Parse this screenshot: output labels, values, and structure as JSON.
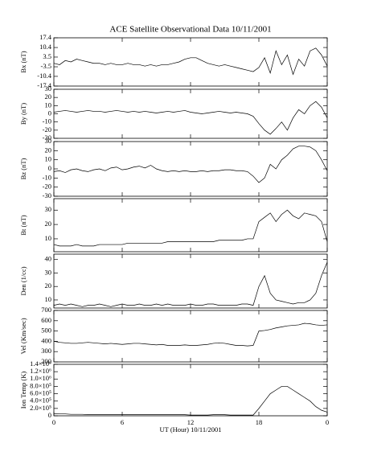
{
  "chart_data": [
    {
      "type": "line",
      "title": "ACE Satellite Observational Data  10/11/2001",
      "ylabel": "Bx (nT)",
      "color": "#000000",
      "xlim": [
        0,
        24
      ],
      "xticks": [
        0,
        6,
        12,
        18,
        {
          "value": 24,
          "label": "0"
        }
      ],
      "ylim": [
        -17.4,
        17.4
      ],
      "yticks": [
        -17.4,
        -10.4,
        -3.5,
        3.5,
        10.4,
        17.4
      ],
      "x": [
        0,
        0.5,
        1,
        1.5,
        2,
        2.5,
        3,
        3.5,
        4,
        4.5,
        5,
        5.5,
        6,
        6.5,
        7,
        7.5,
        8,
        8.5,
        9,
        9.5,
        10,
        10.5,
        11,
        11.5,
        12,
        12.5,
        13,
        13.5,
        14,
        14.5,
        15,
        15.5,
        16,
        16.5,
        17,
        17.5,
        18,
        18.5,
        19,
        19.5,
        20,
        20.5,
        21,
        21.5,
        22,
        22.5,
        23,
        23.5,
        24
      ],
      "values": [
        -1,
        -2,
        1,
        0,
        2,
        1,
        0,
        -1,
        -1,
        -2,
        -1,
        -2,
        -2,
        -1,
        -2,
        -2,
        -3,
        -2,
        -3,
        -2,
        -2,
        -1,
        0,
        2,
        3,
        3,
        1,
        -1,
        -2,
        -3,
        -2,
        -3,
        -4,
        -5,
        -6,
        -7,
        -4,
        3,
        -8,
        8,
        -2,
        5,
        -9,
        2,
        -3,
        8,
        10,
        5,
        -3
      ]
    },
    {
      "type": "line",
      "ylabel": "By (nT)",
      "color": "#000000",
      "xlim": [
        0,
        24
      ],
      "xticks": [
        0,
        6,
        12,
        18,
        {
          "value": 24,
          "label": "0"
        }
      ],
      "ylim": [
        -30,
        30
      ],
      "yticks": [
        -30,
        -20,
        -10,
        0,
        10,
        20,
        30
      ],
      "x": [
        0,
        0.5,
        1,
        1.5,
        2,
        2.5,
        3,
        3.5,
        4,
        4.5,
        5,
        5.5,
        6,
        6.5,
        7,
        7.5,
        8,
        8.5,
        9,
        9.5,
        10,
        10.5,
        11,
        11.5,
        12,
        12.5,
        13,
        13.5,
        14,
        14.5,
        15,
        15.5,
        16,
        16.5,
        17,
        17.5,
        18,
        18.5,
        19,
        19.5,
        20,
        20.5,
        21,
        21.5,
        22,
        22.5,
        23,
        23.5,
        24
      ],
      "values": [
        2,
        3,
        4,
        3,
        2,
        3,
        4,
        3,
        3,
        2,
        3,
        4,
        3,
        2,
        3,
        2,
        3,
        2,
        1,
        2,
        3,
        2,
        3,
        4,
        2,
        1,
        0,
        1,
        2,
        3,
        2,
        1,
        2,
        1,
        0,
        -3,
        -12,
        -20,
        -25,
        -18,
        -10,
        -20,
        -5,
        5,
        0,
        10,
        15,
        8,
        -5
      ]
    },
    {
      "type": "line",
      "ylabel": "Bz (nT)",
      "color": "#000000",
      "xlim": [
        0,
        24
      ],
      "xticks": [
        0,
        6,
        12,
        18,
        {
          "value": 24,
          "label": "0"
        }
      ],
      "ylim": [
        -30,
        30
      ],
      "yticks": [
        -30,
        -20,
        -10,
        0,
        10,
        20,
        30
      ],
      "x": [
        0,
        0.5,
        1,
        1.5,
        2,
        2.5,
        3,
        3.5,
        4,
        4.5,
        5,
        5.5,
        6,
        6.5,
        7,
        7.5,
        8,
        8.5,
        9,
        9.5,
        10,
        10.5,
        11,
        11.5,
        12,
        12.5,
        13,
        13.5,
        14,
        14.5,
        15,
        15.5,
        16,
        16.5,
        17,
        17.5,
        18,
        18.5,
        19,
        19.5,
        20,
        20.5,
        21,
        21.5,
        22,
        22.5,
        23,
        23.5,
        24
      ],
      "values": [
        -3,
        -2,
        -4,
        -1,
        0,
        -2,
        -3,
        -1,
        0,
        -2,
        1,
        2,
        -1,
        0,
        2,
        3,
        1,
        4,
        0,
        -2,
        -3,
        -2,
        -3,
        -2,
        -3,
        -3,
        -2,
        -3,
        -2,
        -2,
        -1,
        -1,
        -2,
        -2,
        -3,
        -8,
        -15,
        -10,
        5,
        0,
        10,
        15,
        22,
        25,
        25,
        24,
        20,
        10,
        -2
      ]
    },
    {
      "type": "line",
      "ylabel": "Bt (nT)",
      "color": "#000000",
      "xlim": [
        0,
        24
      ],
      "xticks": [
        0,
        6,
        12,
        18,
        {
          "value": 24,
          "label": "0"
        }
      ],
      "ylim": [
        1,
        38
      ],
      "yticks": [
        10,
        20,
        30
      ],
      "x": [
        0,
        0.5,
        1,
        1.5,
        2,
        2.5,
        3,
        3.5,
        4,
        4.5,
        5,
        5.5,
        6,
        6.5,
        7,
        7.5,
        8,
        8.5,
        9,
        9.5,
        10,
        10.5,
        11,
        11.5,
        12,
        12.5,
        13,
        13.5,
        14,
        14.5,
        15,
        15.5,
        16,
        16.5,
        17,
        17.5,
        18,
        18.5,
        19,
        19.5,
        20,
        20.5,
        21,
        21.5,
        22,
        22.5,
        23,
        23.5,
        24
      ],
      "values": [
        6,
        5,
        5,
        5,
        6,
        5,
        5,
        5,
        6,
        6,
        6,
        6,
        6,
        7,
        7,
        7,
        7,
        7,
        7,
        7,
        8,
        8,
        8,
        8,
        8,
        8,
        8,
        8,
        8,
        9,
        9,
        9,
        9,
        9,
        10,
        10,
        22,
        25,
        28,
        22,
        27,
        30,
        26,
        24,
        28,
        27,
        26,
        22,
        8
      ]
    },
    {
      "type": "line",
      "ylabel": "Den (1/cc)",
      "color": "#000000",
      "xlim": [
        0,
        24
      ],
      "xticks": [
        0,
        6,
        12,
        18,
        {
          "value": 24,
          "label": "0"
        }
      ],
      "ylim": [
        4,
        44
      ],
      "yticks": [
        10,
        20,
        30,
        40
      ],
      "x": [
        0,
        0.5,
        1,
        1.5,
        2,
        2.5,
        3,
        3.5,
        4,
        4.5,
        5,
        5.5,
        6,
        6.5,
        7,
        7.5,
        8,
        8.5,
        9,
        9.5,
        10,
        10.5,
        11,
        11.5,
        12,
        12.5,
        13,
        13.5,
        14,
        14.5,
        15,
        15.5,
        16,
        16.5,
        17,
        17.5,
        18,
        18.5,
        19,
        19.5,
        20,
        20.5,
        21,
        21.5,
        22,
        22.5,
        23,
        23.5,
        24
      ],
      "values": [
        6,
        7,
        6,
        7,
        6,
        5,
        6,
        6,
        7,
        6,
        5,
        6,
        7,
        6,
        6,
        7,
        6,
        6,
        7,
        6,
        7,
        6,
        6,
        6,
        7,
        6,
        6,
        7,
        7,
        6,
        6,
        6,
        6,
        7,
        7,
        6,
        20,
        28,
        15,
        10,
        9,
        8,
        7,
        8,
        8,
        10,
        15,
        28,
        38
      ]
    },
    {
      "type": "line",
      "ylabel": "Vel (Km/sec)",
      "color": "#000000",
      "xlim": [
        0,
        24
      ],
      "xticks": [
        0,
        6,
        12,
        18,
        {
          "value": 24,
          "label": "0"
        }
      ],
      "ylim": [
        200,
        700
      ],
      "yticks": [
        200,
        300,
        400,
        500,
        600,
        700
      ],
      "x": [
        0,
        0.5,
        1,
        1.5,
        2,
        2.5,
        3,
        3.5,
        4,
        4.5,
        5,
        5.5,
        6,
        6.5,
        7,
        7.5,
        8,
        8.5,
        9,
        9.5,
        10,
        10.5,
        11,
        11.5,
        12,
        12.5,
        13,
        13.5,
        14,
        14.5,
        15,
        15.5,
        16,
        16.5,
        17,
        17.5,
        18,
        18.5,
        19,
        19.5,
        20,
        20.5,
        21,
        21.5,
        22,
        22.5,
        23,
        23.5,
        24
      ],
      "values": [
        400,
        390,
        385,
        380,
        380,
        385,
        390,
        385,
        380,
        375,
        380,
        375,
        370,
        375,
        380,
        380,
        375,
        370,
        365,
        370,
        360,
        360,
        360,
        365,
        360,
        360,
        365,
        370,
        380,
        385,
        380,
        370,
        360,
        360,
        355,
        360,
        500,
        505,
        515,
        530,
        540,
        550,
        555,
        560,
        575,
        570,
        560,
        555,
        560
      ]
    },
    {
      "type": "line",
      "ylabel": "Ion Temp (K)",
      "xlabel": "UT (Hour)  10/11/2001",
      "color": "#000000",
      "xlim": [
        0,
        24
      ],
      "xticks": [
        0,
        6,
        12,
        18,
        {
          "value": 24,
          "label": "0"
        }
      ],
      "ylim": [
        0,
        1400000
      ],
      "yticks": [
        0,
        {
          "value": 200000,
          "label": "2.0×10⁵"
        },
        {
          "value": 400000,
          "label": "4.0×10⁵"
        },
        {
          "value": 600000,
          "label": "6.0×10⁵"
        },
        {
          "value": 800000,
          "label": "8.0×10⁵"
        },
        {
          "value": 1000000,
          "label": "1.0×10⁶"
        },
        {
          "value": 1200000,
          "label": "1.2×10⁶"
        },
        {
          "value": 1400000,
          "label": "1.4×10⁶"
        }
      ],
      "x": [
        0,
        0.5,
        1,
        1.5,
        2,
        2.5,
        3,
        3.5,
        4,
        4.5,
        5,
        5.5,
        6,
        6.5,
        7,
        7.5,
        8,
        8.5,
        9,
        9.5,
        10,
        10.5,
        11,
        11.5,
        12,
        12.5,
        13,
        13.5,
        14,
        14.5,
        15,
        15.5,
        16,
        16.5,
        17,
        17.5,
        18,
        18.5,
        19,
        19.5,
        20,
        20.5,
        21,
        21.5,
        22,
        22.5,
        23,
        23.5,
        24
      ],
      "values": [
        60000,
        50000,
        50000,
        40000,
        40000,
        40000,
        30000,
        30000,
        30000,
        30000,
        30000,
        30000,
        30000,
        30000,
        30000,
        30000,
        30000,
        30000,
        30000,
        30000,
        30000,
        30000,
        30000,
        30000,
        20000,
        20000,
        20000,
        20000,
        30000,
        30000,
        30000,
        20000,
        20000,
        20000,
        20000,
        20000,
        200000,
        400000,
        600000,
        700000,
        800000,
        800000,
        700000,
        600000,
        500000,
        400000,
        250000,
        150000,
        100000
      ]
    }
  ]
}
